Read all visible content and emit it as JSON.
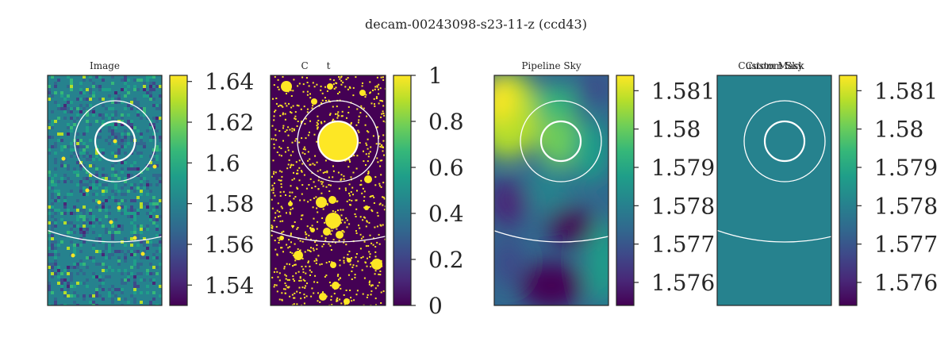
{
  "figure": {
    "title": "decam-00243098-s23-11-z (ccd43)"
  },
  "colors": {
    "background": "#ffffff",
    "frame": "#262626",
    "circle": "#ffffff",
    "viridis": [
      "#440154",
      "#482878",
      "#3e4989",
      "#31688e",
      "#26828e",
      "#1f9e89",
      "#35b779",
      "#6ece58",
      "#b5de2b",
      "#fde725"
    ]
  },
  "chart_data": [
    {
      "type": "heatmap",
      "title": "Image",
      "colormap": "viridis",
      "colorbar": {
        "range": [
          1.53,
          1.643
        ],
        "ticks": [
          1.54,
          1.56,
          1.58,
          1.6,
          1.62,
          1.64
        ],
        "tick_labels": [
          "1.54",
          "1.56",
          "1.58",
          "1.6",
          "1.62",
          "1.64"
        ]
      },
      "content": "noisy image with scattered point sources"
    },
    {
      "type": "heatmap",
      "title": "C      t",
      "colormap": "viridis",
      "colorbar": {
        "range": [
          0,
          1
        ],
        "ticks": [
          0,
          0.2,
          0.4,
          0.6,
          0.8,
          1
        ],
        "tick_labels": [
          "0",
          "0.2",
          "0.4",
          "0.6",
          "0.8",
          "1"
        ]
      },
      "content": "binary mask of detected sources"
    },
    {
      "type": "heatmap",
      "title": "Pipeline Sky",
      "colormap": "viridis",
      "colorbar": {
        "range": [
          1.5754,
          1.5814
        ],
        "ticks": [
          1.576,
          1.577,
          1.578,
          1.579,
          1.58,
          1.581
        ],
        "tick_labels": [
          "1.576",
          "1.577",
          "1.578",
          "1.579",
          "1.58",
          "1.581"
        ]
      },
      "content": "smooth sky background model"
    },
    {
      "type": "heatmap",
      "title": "Custom Sky",
      "title_overlap": "Custom Mask",
      "colormap": "viridis",
      "colorbar": {
        "range": [
          1.5754,
          1.5814
        ],
        "ticks": [
          1.576,
          1.577,
          1.578,
          1.579,
          1.58,
          1.581
        ],
        "tick_labels": [
          "1.576",
          "1.577",
          "1.578",
          "1.579",
          "1.58",
          "1.581"
        ]
      },
      "content": "constant sky value",
      "constant_value": 1.5785
    }
  ]
}
